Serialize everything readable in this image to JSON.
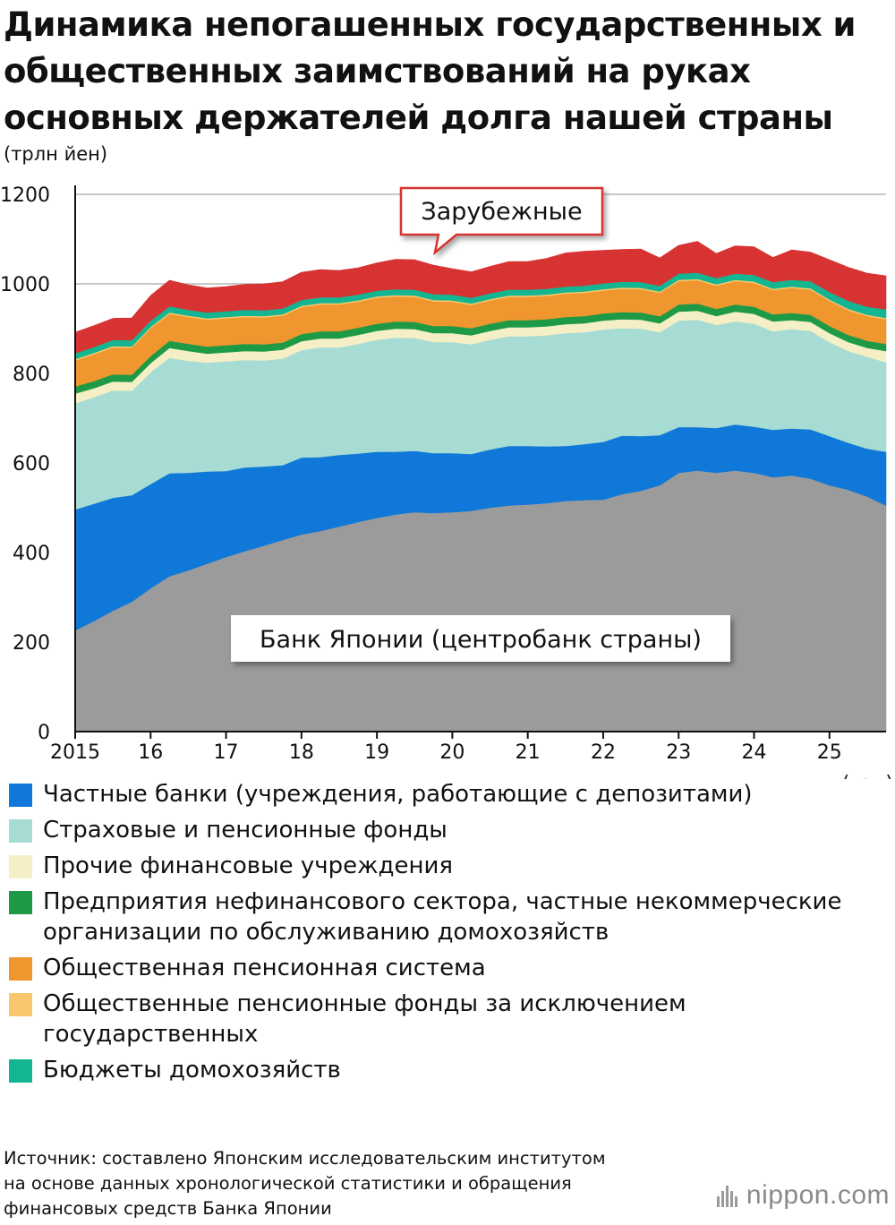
{
  "title_lines": [
    "Динамика непогашенных государственных и",
    "общественных заимствований на руках",
    "основных держателей долга нашей страны"
  ],
  "unit_label": "(трлн йен)",
  "year_unit": "(год)",
  "source_lines": [
    "Источник: составлено Японским исследовательским институтом",
    "на основе данных хронологической статистики и обращения",
    "финансовых средств Банка Японии"
  ],
  "logo_text": "nippon.com",
  "chart_data": {
    "type": "area",
    "stacked": true,
    "ylim": [
      0,
      1200
    ],
    "yticks": [
      0,
      200,
      400,
      600,
      800,
      1000,
      1200
    ],
    "xlim": [
      2015.0,
      2025.75
    ],
    "xticks": [
      {
        "value": 2015,
        "label": "2015"
      },
      {
        "value": 2016,
        "label": "16"
      },
      {
        "value": 2017,
        "label": "17"
      },
      {
        "value": 2018,
        "label": "18"
      },
      {
        "value": 2019,
        "label": "19"
      },
      {
        "value": 2020,
        "label": "20"
      },
      {
        "value": 2021,
        "label": "21"
      },
      {
        "value": 2022,
        "label": "22"
      },
      {
        "value": 2023,
        "label": "23"
      },
      {
        "value": 2024,
        "label": "24"
      },
      {
        "value": 2025,
        "label": "25"
      }
    ],
    "grid": true,
    "x": [
      2015.0,
      2015.25,
      2015.5,
      2015.75,
      2016.0,
      2016.25,
      2016.5,
      2016.75,
      2017.0,
      2017.25,
      2017.5,
      2017.75,
      2018.0,
      2018.25,
      2018.5,
      2018.75,
      2019.0,
      2019.25,
      2019.5,
      2019.75,
      2020.0,
      2020.25,
      2020.5,
      2020.75,
      2021.0,
      2021.25,
      2021.5,
      2021.75,
      2022.0,
      2022.25,
      2022.5,
      2022.75,
      2023.0,
      2023.25,
      2023.5,
      2023.75,
      2024.0,
      2024.25,
      2024.5,
      2024.75,
      2025.0,
      2025.25,
      2025.5,
      2025.75
    ],
    "series": [
      {
        "name": "Банк Японии (центробанк страны)",
        "color": "#9b9b9b",
        "values": [
          226,
          247,
          270,
          290,
          320,
          347,
          360,
          375,
          390,
          403,
          415,
          428,
          440,
          448,
          458,
          468,
          477,
          485,
          490,
          488,
          490,
          493,
          500,
          505,
          507,
          510,
          515,
          517,
          518,
          530,
          538,
          550,
          578,
          583,
          578,
          583,
          578,
          568,
          572,
          565,
          550,
          540,
          525,
          505
        ]
      },
      {
        "name": "Частные банки (учреждения, работающие с депозитами)",
        "color": "#1078d8",
        "values": [
          270,
          262,
          252,
          238,
          233,
          230,
          218,
          206,
          192,
          187,
          177,
          167,
          172,
          165,
          160,
          153,
          148,
          140,
          137,
          134,
          132,
          127,
          130,
          133,
          131,
          127,
          123,
          125,
          129,
          131,
          122,
          112,
          102,
          97,
          100,
          103,
          103,
          106,
          105,
          110,
          110,
          105,
          107,
          120
        ]
      },
      {
        "name": "Страховые и пенсионные фонды",
        "color": "#a6dcd4",
        "values": [
          237,
          238,
          240,
          233,
          250,
          258,
          250,
          243,
          245,
          240,
          237,
          238,
          240,
          245,
          240,
          245,
          250,
          255,
          252,
          248,
          248,
          245,
          245,
          245,
          245,
          248,
          252,
          250,
          251,
          240,
          240,
          230,
          238,
          240,
          230,
          230,
          230,
          220,
          222,
          220,
          210,
          205,
          205,
          200
        ]
      },
      {
        "name": "Прочие финансовые учреждения",
        "color": "#f5efc6",
        "values": [
          22,
          20,
          20,
          20,
          20,
          22,
          22,
          20,
          20,
          20,
          20,
          20,
          20,
          20,
          20,
          20,
          20,
          20,
          20,
          20,
          20,
          20,
          20,
          20,
          20,
          20,
          20,
          20,
          20,
          20,
          20,
          20,
          20,
          20,
          20,
          22,
          22,
          22,
          20,
          20,
          20,
          20,
          20,
          25
        ]
      },
      {
        "name": "Предприятия нефинансового сектора, частные некоммерческие организации по обслуживанию домохозяйств",
        "color": "#1e9a46",
        "values": [
          16,
          16,
          16,
          16,
          16,
          16,
          16,
          16,
          16,
          16,
          16,
          16,
          16,
          16,
          16,
          16,
          16,
          16,
          16,
          16,
          16,
          16,
          16,
          16,
          16,
          16,
          16,
          16,
          16,
          16,
          16,
          16,
          16,
          16,
          16,
          16,
          16,
          16,
          16,
          16,
          16,
          16,
          16,
          16
        ]
      },
      {
        "name": "Общественная пенсионная система",
        "color": "#f0962e",
        "values": [
          58,
          60,
          60,
          60,
          62,
          60,
          60,
          60,
          60,
          60,
          60,
          60,
          60,
          60,
          60,
          58,
          58,
          56,
          56,
          55,
          54,
          52,
          52,
          52,
          52,
          52,
          52,
          52,
          51,
          52,
          52,
          52,
          52,
          52,
          52,
          52,
          53,
          54,
          56,
          56,
          56,
          55,
          55,
          55
        ]
      },
      {
        "name": "Общественные пенсионные фонды за исключением государственных",
        "color": "#f9c86e",
        "values": [
          3,
          3,
          3,
          3,
          3,
          3,
          3,
          3,
          3,
          3,
          3,
          3,
          3,
          3,
          3,
          3,
          3,
          3,
          3,
          3,
          3,
          3,
          3,
          3,
          3,
          3,
          3,
          3,
          3,
          3,
          3,
          3,
          3,
          3,
          3,
          3,
          3,
          3,
          3,
          3,
          3,
          3,
          3,
          3
        ]
      },
      {
        "name": "Бюджеты домохозяйств",
        "color": "#14b591",
        "values": [
          13,
          13,
          14,
          14,
          14,
          14,
          13,
          13,
          13,
          13,
          13,
          13,
          13,
          13,
          13,
          13,
          13,
          13,
          13,
          13,
          13,
          13,
          13,
          13,
          13,
          13,
          13,
          13,
          13,
          13,
          13,
          13,
          14,
          14,
          14,
          14,
          15,
          15,
          15,
          16,
          17,
          18,
          18,
          19
        ]
      },
      {
        "name": "Зарубежные",
        "color": "#d83333",
        "values": [
          47,
          48,
          48,
          50,
          56,
          58,
          56,
          55,
          55,
          57,
          59,
          60,
          62,
          62,
          60,
          60,
          62,
          67,
          67,
          65,
          58,
          58,
          60,
          63,
          63,
          68,
          75,
          77,
          74,
          72,
          74,
          62,
          63,
          70,
          55,
          62,
          63,
          55,
          67,
          65,
          72,
          75,
          75,
          75
        ]
      }
    ],
    "annotations": [
      {
        "text": "Зарубежные",
        "x": 2019.75,
        "y": 1090
      },
      {
        "text": "Банк Японии (центробанк страны)",
        "x": 2020.4,
        "y": 200
      }
    ]
  },
  "legend": [
    {
      "label": "Частные банки (учреждения, работающие с депозитами)",
      "color": "#1078d8"
    },
    {
      "label": "Страховые и пенсионные фонды",
      "color": "#a6dcd4"
    },
    {
      "label": "Прочие финансовые учреждения",
      "color": "#f5efc6"
    },
    {
      "label": "Предприятия нефинансового сектора, частные некоммерческие организации по обслуживанию домохозяйств",
      "color": "#1e9a46"
    },
    {
      "label": "Общественная пенсионная система",
      "color": "#f0962e"
    },
    {
      "label": "Общественные пенсионные фонды за исключением государственных",
      "color": "#f9c86e"
    },
    {
      "label": "Бюджеты домохозяйств",
      "color": "#14b591"
    }
  ]
}
